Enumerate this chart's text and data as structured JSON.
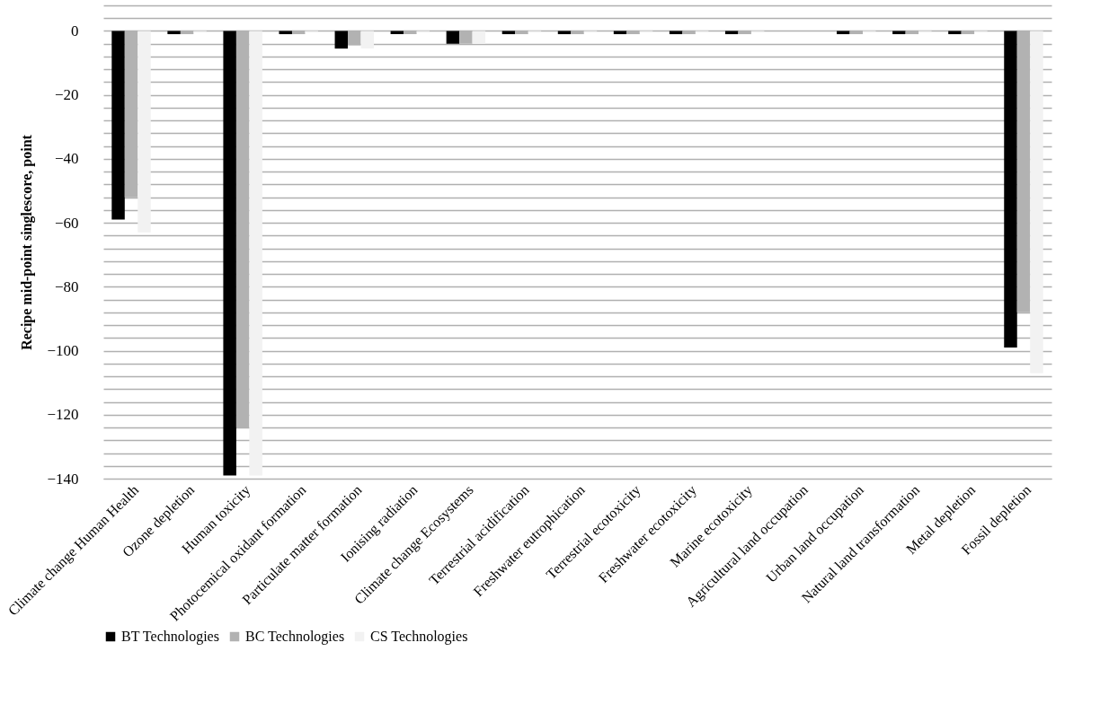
{
  "chart_data": {
    "type": "bar",
    "ylabel": "Recipe mid-point singlescore, point",
    "categories": [
      "Climate change Human Health",
      "Ozone depletion",
      "Human toxicity",
      "Photocemical oxidant formation",
      "Particulate matter formation",
      "Ionising radiation",
      "Climate change Ecosystems",
      "Terrestrial acidification",
      "Freshwater eutrophication",
      "Terrestrial ecotoxicity",
      "Freshwater ecotoxicity",
      "Marine ecotoxicity",
      "Agricultural land occupation",
      "Urban land occupation",
      "Natural land transformation",
      "Metal depletion",
      "Fossil depletion"
    ],
    "series": [
      {
        "name": "BT Technologies",
        "color": "#000000",
        "values": [
          -59,
          -1,
          -139,
          -1,
          -5.5,
          -1,
          -4,
          -1,
          -1,
          -1,
          -1,
          -1,
          0,
          -1,
          -1,
          -1,
          -99
        ]
      },
      {
        "name": "BC Technologies",
        "color": "#b2b2b2",
        "values": [
          -52,
          -1,
          -124,
          -1,
          -4.5,
          -1,
          -4,
          -1,
          -1,
          -1,
          -1,
          -1,
          0,
          -1,
          -1,
          -1,
          -88
        ]
      },
      {
        "name": "CS Technologies",
        "color": "#f2f2f2",
        "values": [
          -63,
          -0.5,
          -139,
          -0.5,
          -5.5,
          -0.5,
          -4,
          -0.5,
          -0.5,
          -0.5,
          -0.5,
          -0.5,
          0,
          -0.5,
          -0.5,
          -0.5,
          -107
        ]
      }
    ],
    "ylim": [
      -140,
      8
    ],
    "yticks": [
      {
        "value": -140,
        "label": "−140"
      },
      {
        "value": -136,
        "label": null
      },
      {
        "value": -132,
        "label": null
      },
      {
        "value": -128,
        "label": null
      },
      {
        "value": -124,
        "label": null
      },
      {
        "value": -120,
        "label": "−120"
      },
      {
        "value": -116,
        "label": null
      },
      {
        "value": -112,
        "label": null
      },
      {
        "value": -108,
        "label": null
      },
      {
        "value": -104,
        "label": null
      },
      {
        "value": -100,
        "label": "−100"
      },
      {
        "value": -96,
        "label": null
      },
      {
        "value": -92,
        "label": null
      },
      {
        "value": -88,
        "label": null
      },
      {
        "value": -84,
        "label": null
      },
      {
        "value": -80,
        "label": "−80"
      },
      {
        "value": -76,
        "label": null
      },
      {
        "value": -72,
        "label": null
      },
      {
        "value": -68,
        "label": null
      },
      {
        "value": -64,
        "label": null
      },
      {
        "value": -60,
        "label": "−60"
      },
      {
        "value": -56,
        "label": null
      },
      {
        "value": -52,
        "label": null
      },
      {
        "value": -48,
        "label": null
      },
      {
        "value": -44,
        "label": null
      },
      {
        "value": -40,
        "label": "−40"
      },
      {
        "value": -36,
        "label": null
      },
      {
        "value": -32,
        "label": null
      },
      {
        "value": -28,
        "label": null
      },
      {
        "value": -24,
        "label": null
      },
      {
        "value": -20,
        "label": "−20"
      },
      {
        "value": -16,
        "label": null
      },
      {
        "value": -12,
        "label": null
      },
      {
        "value": -8,
        "label": null
      },
      {
        "value": -4,
        "label": null
      },
      {
        "value": 0,
        "label": "0"
      },
      {
        "value": 4,
        "label": null
      },
      {
        "value": 8,
        "label": null
      }
    ],
    "grid": "y",
    "legend": "bottom"
  }
}
